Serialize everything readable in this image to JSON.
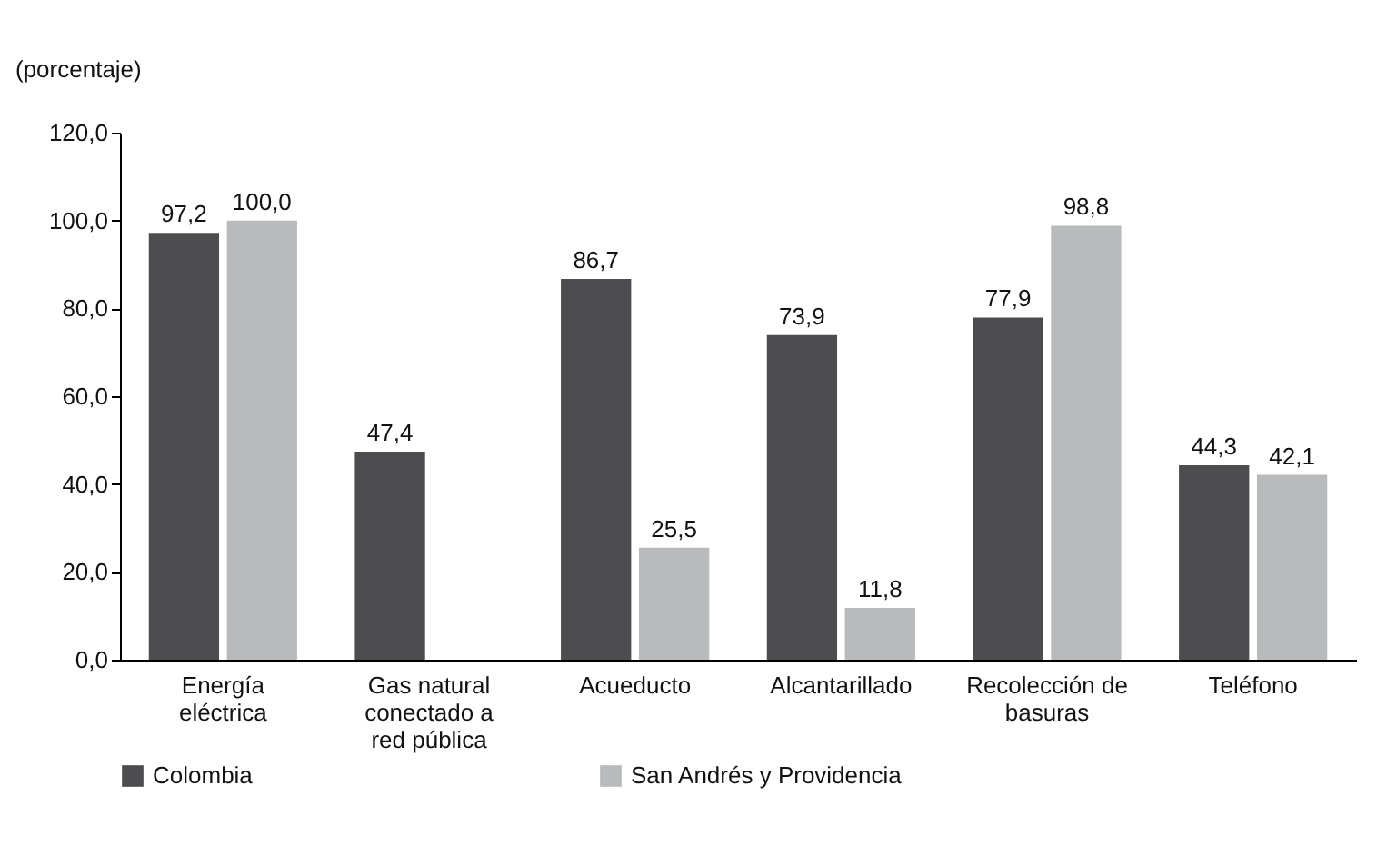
{
  "chart_data": {
    "type": "bar",
    "ylabel": "(porcentaje)",
    "categories": [
      "Energía eléctrica",
      "Gas natural conectado a red pública",
      "Acueducto",
      "Alcantarillado",
      "Recolección de basuras",
      "Teléfono"
    ],
    "series": [
      {
        "name": "Colombia",
        "color": "#4d4d4f",
        "values": [
          97.2,
          47.4,
          86.7,
          73.9,
          77.9,
          44.3
        ],
        "value_labels": [
          "97,2",
          "47,4",
          "86,7",
          "73,9",
          "77,9",
          "44,3"
        ]
      },
      {
        "name": "San Andrés y Providencia",
        "color": "#b9babc",
        "values": [
          100.0,
          null,
          25.5,
          11.8,
          98.8,
          42.1
        ],
        "value_labels": [
          "100,0",
          null,
          "25,5",
          "11,8",
          "98,8",
          "42,1"
        ]
      }
    ],
    "ylim": [
      0,
      120
    ],
    "yticks": [
      {
        "value": 0,
        "label": "0,0"
      },
      {
        "value": 20,
        "label": "20,0"
      },
      {
        "value": 40,
        "label": "40,0"
      },
      {
        "value": 60,
        "label": "60,0"
      },
      {
        "value": 80,
        "label": "80,0"
      },
      {
        "value": 100,
        "label": "100,0"
      },
      {
        "value": 120,
        "label": "120,0"
      }
    ],
    "grid": false,
    "legend": "bottom"
  }
}
